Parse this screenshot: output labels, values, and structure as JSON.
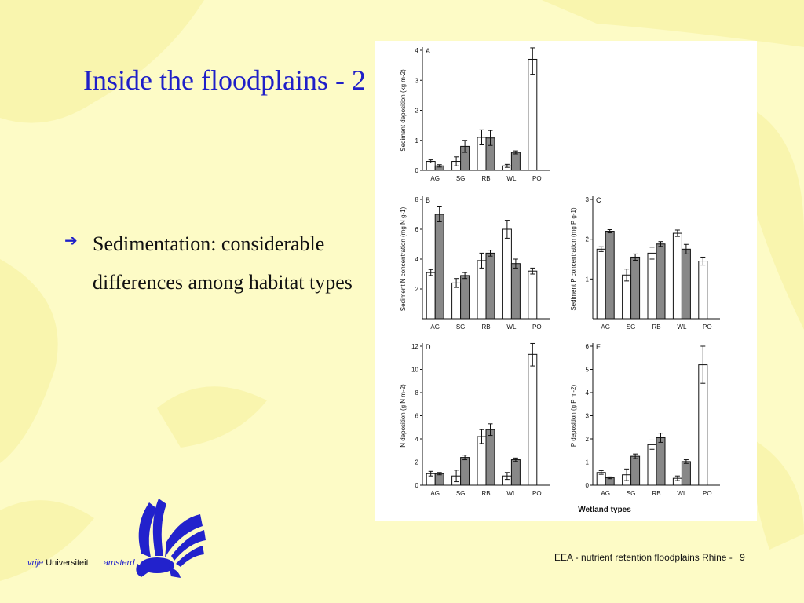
{
  "slide": {
    "title": "Inside the floodplains - 2",
    "bullet_icon": "right-arrow-icon",
    "bullet_text": "Sedimentation: considerable differences among habitat types",
    "footer_text": "EEA - nutrient retention floodplains Rhine -",
    "page_number": "9",
    "logo": {
      "line1_italic": "vrije",
      "line1": "Universiteit",
      "line2": "amsterd"
    },
    "colors": {
      "title": "#1f1fc8",
      "background": "#fdfbc6",
      "logo": "#2222cc",
      "bar_fill": "#888888"
    }
  },
  "figure": {
    "xlabel_bottom": "Wetland types"
  },
  "chart_data": [
    {
      "type": "bar",
      "panel": "A",
      "ylabel": "Sediment deposition (kg m-2)",
      "categories": [
        "AG",
        "SG",
        "RB",
        "WL",
        "PO"
      ],
      "ylim": [
        0,
        4
      ],
      "yticks": [
        0,
        1,
        2,
        3,
        4
      ],
      "series": [
        {
          "values": [
            0.3,
            0.3,
            1.1,
            0.15,
            3.7
          ],
          "errors": [
            0.05,
            0.15,
            0.25,
            0.05,
            0.5
          ]
        },
        {
          "values": [
            0.15,
            0.8,
            1.08,
            0.6,
            null
          ],
          "errors": [
            0.04,
            0.2,
            0.25,
            0.05,
            null
          ]
        }
      ]
    },
    {
      "type": "bar",
      "panel": "B",
      "ylabel": "Sediment N concentration (mg N g-1)",
      "categories": [
        "AG",
        "SG",
        "RB",
        "WL",
        "PO"
      ],
      "ylim": [
        0,
        8
      ],
      "yticks": [
        2,
        4,
        6,
        8
      ],
      "series": [
        {
          "values": [
            3.1,
            2.4,
            3.9,
            6.0,
            3.2
          ],
          "errors": [
            0.2,
            0.3,
            0.5,
            0.6,
            0.2
          ]
        },
        {
          "values": [
            7.0,
            2.9,
            4.4,
            3.7,
            null
          ],
          "errors": [
            0.5,
            0.2,
            0.2,
            0.3,
            null
          ]
        }
      ]
    },
    {
      "type": "bar",
      "panel": "C",
      "ylabel": "Sediment P concentration (mg P g-1)",
      "categories": [
        "AG",
        "SG",
        "RB",
        "WL",
        "PO"
      ],
      "ylim": [
        0,
        3
      ],
      "yticks": [
        1,
        2,
        3
      ],
      "series": [
        {
          "values": [
            1.75,
            1.1,
            1.65,
            2.15,
            1.45
          ],
          "errors": [
            0.06,
            0.15,
            0.15,
            0.08,
            0.1
          ]
        },
        {
          "values": [
            2.2,
            1.55,
            1.88,
            1.75,
            null
          ],
          "errors": [
            0.04,
            0.08,
            0.06,
            0.12,
            null
          ]
        }
      ]
    },
    {
      "type": "bar",
      "panel": "D",
      "ylabel": "N deposition (g N m-2)",
      "categories": [
        "AG",
        "SG",
        "RB",
        "WL",
        "PO"
      ],
      "ylim": [
        0,
        12
      ],
      "yticks": [
        0,
        2,
        4,
        6,
        8,
        10,
        12
      ],
      "series": [
        {
          "values": [
            1.0,
            0.8,
            4.2,
            0.8,
            11.3
          ],
          "errors": [
            0.2,
            0.5,
            0.6,
            0.3,
            1.0
          ]
        },
        {
          "values": [
            1.0,
            2.4,
            4.8,
            2.2,
            null
          ],
          "errors": [
            0.1,
            0.2,
            0.5,
            0.15,
            null
          ]
        }
      ]
    },
    {
      "type": "bar",
      "panel": "E",
      "ylabel": "P deposition (g P m-2)",
      "categories": [
        "AG",
        "SG",
        "RB",
        "WL",
        "PO"
      ],
      "ylim": [
        0,
        6
      ],
      "yticks": [
        0,
        1,
        2,
        3,
        4,
        5,
        6
      ],
      "series": [
        {
          "values": [
            0.55,
            0.45,
            1.75,
            0.3,
            5.2
          ],
          "errors": [
            0.08,
            0.25,
            0.2,
            0.1,
            0.8
          ]
        },
        {
          "values": [
            0.32,
            1.25,
            2.05,
            1.02,
            null
          ],
          "errors": [
            0.04,
            0.1,
            0.2,
            0.08,
            null
          ]
        }
      ]
    }
  ]
}
